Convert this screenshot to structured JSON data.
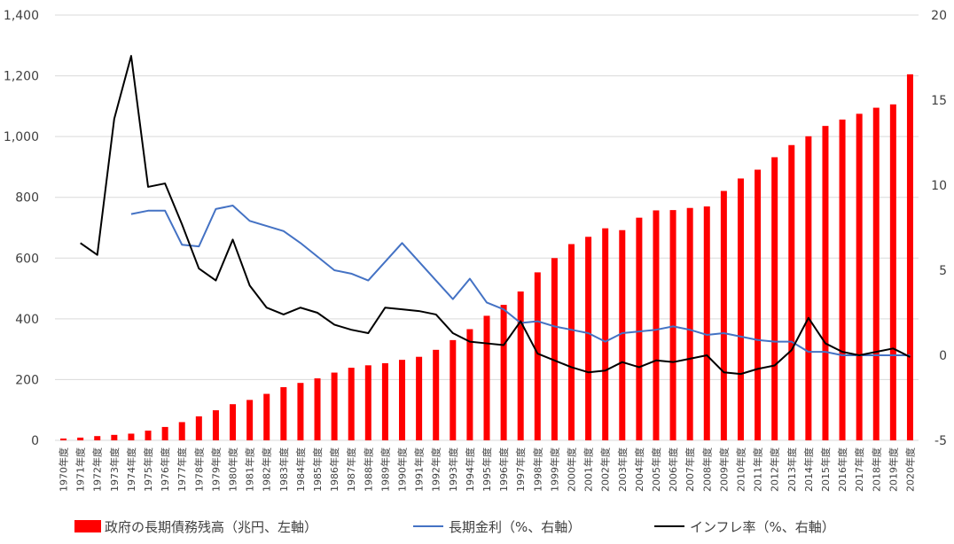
{
  "chart_data": {
    "type": "bar",
    "title": "",
    "categories": [
      "1970年度",
      "1971年度",
      "1972年度",
      "1973年度",
      "1974年度",
      "1975年度",
      "1976年度",
      "1977年度",
      "1978年度",
      "1979年度",
      "1980年度",
      "1981年度",
      "1982年度",
      "1983年度",
      "1984年度",
      "1985年度",
      "1986年度",
      "1987年度",
      "1988年度",
      "1989年度",
      "1990年度",
      "1991年度",
      "1992年度",
      "1993年度",
      "1994年度",
      "1995年度",
      "1996年度",
      "1997年度",
      "1998年度",
      "1999年度",
      "2000年度",
      "2001年度",
      "2002年度",
      "2003年度",
      "2004年度",
      "2005年度",
      "2006年度",
      "2007年度",
      "2008年度",
      "2009年度",
      "2010年度",
      "2011年度",
      "2012年度",
      "2013年度",
      "2014年度",
      "2015年度",
      "2016年度",
      "2017年度",
      "2018年度",
      "2019年度",
      "2020年度"
    ],
    "y_left": {
      "range": [
        0,
        1400
      ],
      "ticks": [
        "0",
        "200",
        "400",
        "600",
        "800",
        "1,000",
        "1,200",
        "1,400"
      ]
    },
    "y_right": {
      "range": [
        -5,
        20
      ],
      "ticks": [
        "-5",
        "0",
        "5",
        "10",
        "15",
        "20"
      ]
    },
    "grid": true,
    "legend_position": "bottom",
    "series": [
      {
        "name": "政府の長期債務残高（兆円、左軸）",
        "type": "bar",
        "axis": "left",
        "color": "#ff0000",
        "values": [
          6,
          9,
          14,
          18,
          22,
          32,
          44,
          60,
          79,
          99,
          119,
          133,
          153,
          175,
          189,
          204,
          223,
          239,
          247,
          254,
          265,
          275,
          298,
          330,
          366,
          410,
          446,
          490,
          553,
          600,
          646,
          670,
          698,
          692,
          733,
          757,
          758,
          765,
          770,
          821,
          862,
          891,
          932,
          972,
          1001,
          1035,
          1056,
          1075,
          1095,
          1106,
          1205
        ]
      },
      {
        "name": "長期金利（%、右軸）",
        "type": "line",
        "axis": "right",
        "color": "#4472c4",
        "values": [
          null,
          null,
          null,
          null,
          8.3,
          8.5,
          8.5,
          6.5,
          6.4,
          8.6,
          8.8,
          7.9,
          7.6,
          7.3,
          6.6,
          5.8,
          5.0,
          4.8,
          4.4,
          5.5,
          6.6,
          5.5,
          4.4,
          3.3,
          4.5,
          3.1,
          2.7,
          1.9,
          2.0,
          1.7,
          1.5,
          1.3,
          0.8,
          1.3,
          1.4,
          1.5,
          1.7,
          1.5,
          1.2,
          1.3,
          1.1,
          0.9,
          0.8,
          0.8,
          0.2,
          0.2,
          0.0,
          0.0,
          0.0,
          0.0,
          0.0
        ]
      },
      {
        "name": "インフレ率（%、右軸）",
        "type": "line",
        "axis": "right",
        "color": "#000000",
        "values": [
          null,
          6.6,
          5.9,
          13.9,
          17.6,
          9.9,
          10.1,
          7.7,
          5.1,
          4.4,
          6.8,
          4.1,
          2.8,
          2.4,
          2.8,
          2.5,
          1.8,
          1.5,
          1.3,
          2.8,
          2.7,
          2.6,
          2.4,
          1.3,
          0.8,
          0.7,
          0.6,
          2.0,
          0.1,
          -0.3,
          -0.7,
          -1.0,
          -0.9,
          -0.4,
          -0.7,
          -0.3,
          -0.4,
          -0.2,
          0.0,
          -1.0,
          -1.1,
          -0.8,
          -0.6,
          0.3,
          2.2,
          0.7,
          0.2,
          0.0,
          0.2,
          0.4,
          -0.1
        ]
      }
    ]
  }
}
